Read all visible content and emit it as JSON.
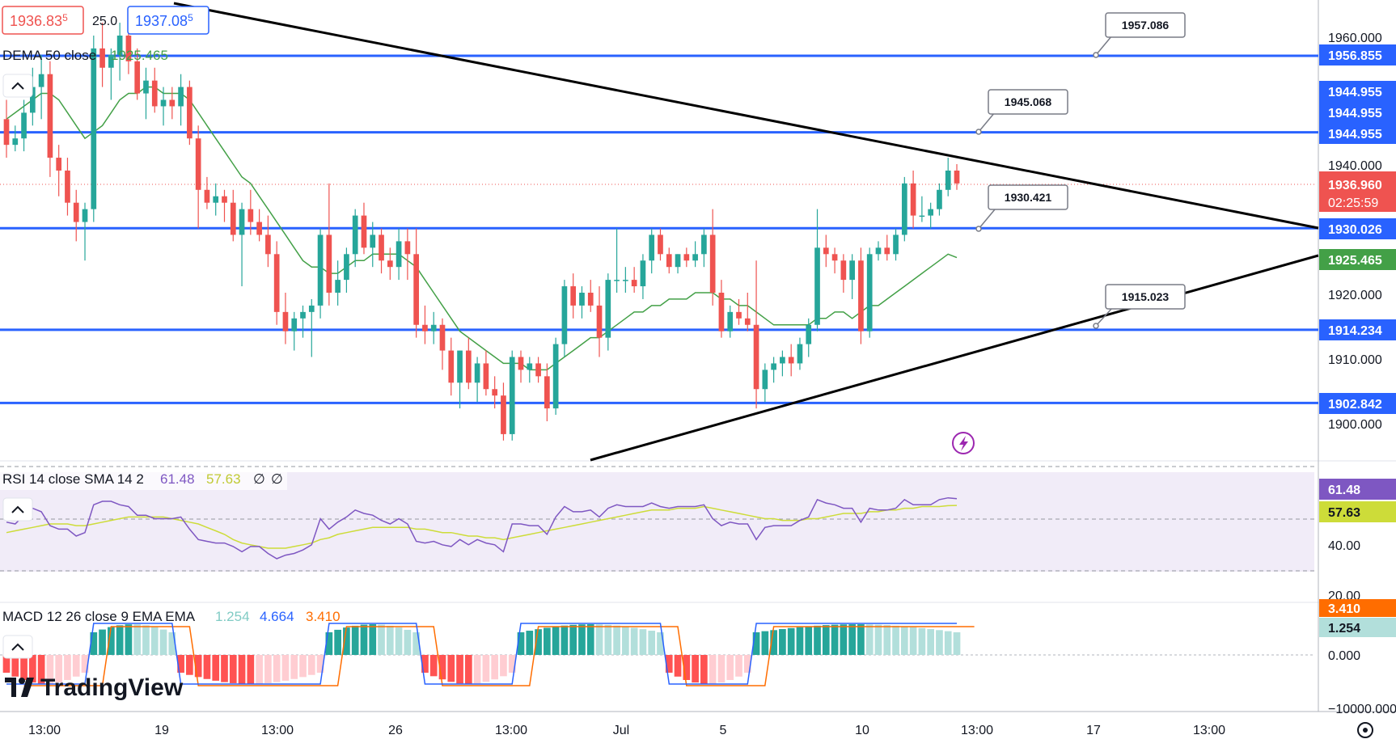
{
  "header": {
    "bid_price": "1936.83",
    "bid_frac": "5",
    "spread": "25.0",
    "ask_price": "1937.08",
    "ask_frac": "5",
    "dema_label": "DEMA 50 close",
    "dema_value": "1925.465"
  },
  "rsi_legend": {
    "label": "RSI 14 close SMA 14 2",
    "rsi": "61.48",
    "sma": "57.63",
    "n1": "∅",
    "n2": "∅"
  },
  "macd_legend": {
    "label": "MACD 12 26 close 9 EMA EMA",
    "hist": "1.254",
    "macd": "4.664",
    "signal": "3.410"
  },
  "brand": {
    "name": "TradingView"
  },
  "colors": {
    "up": "#26a69a",
    "down": "#ef5350",
    "level": "#2962ff",
    "trend": "#000000",
    "dema": "#43a047",
    "rsi": "#7e57c2",
    "rsi_sma": "#cddc39",
    "macd": "#2962ff",
    "signal": "#ff6d00",
    "hist_up_strong": "#26a69a",
    "hist_up_weak": "#b2dfdb",
    "hist_down_strong": "#ff5252",
    "hist_down_weak": "#ffcdd2",
    "price_tag": "#ef5350"
  },
  "price_axis": {
    "ticks": [
      "1960.000",
      "1940.000",
      "1920.000",
      "1910.000",
      "1900.000"
    ],
    "last_price": "1936.960",
    "countdown": "02:25:59",
    "dema_tag": "1925.465"
  },
  "levels": [
    {
      "label": "1956.855",
      "value": 1956.855
    },
    {
      "label": "1944.955",
      "value": 1944.955
    },
    {
      "label": "1944.955",
      "value": 1944.955
    },
    {
      "label": "1944.955",
      "value": 1944.955
    },
    {
      "label": "1930.026",
      "value": 1930.026
    },
    {
      "label": "1914.234",
      "value": 1914.234
    },
    {
      "label": "1902.842",
      "value": 1902.842
    }
  ],
  "callouts": [
    "1957.086",
    "1945.068",
    "1930.421",
    "1915.023"
  ],
  "rsi_axis": {
    "ticks": [
      "40.00",
      "20.00"
    ],
    "rsi_tag": "61.48",
    "sma_tag": "57.63"
  },
  "macd_axis": {
    "ticks": [
      "0.000",
      "−10000.000"
    ],
    "signal_tag": "3.410",
    "hist_tag": "1.254"
  },
  "time_axis": [
    "13:00",
    "19",
    "13:00",
    "26",
    "13:00",
    "Jul",
    "5",
    "10",
    "13:00",
    "17",
    "13:00"
  ],
  "chart_data": {
    "type": "candlestick",
    "instrument_price_range": [
      1898,
      1962
    ],
    "candles": [
      {
        "o": 1947,
        "h": 1950,
        "l": 1941,
        "c": 1943
      },
      {
        "o": 1943,
        "h": 1946,
        "l": 1942,
        "c": 1944
      },
      {
        "o": 1944,
        "h": 1950,
        "l": 1942,
        "c": 1948
      },
      {
        "o": 1948,
        "h": 1955,
        "l": 1946,
        "c": 1952
      },
      {
        "o": 1952,
        "h": 1957,
        "l": 1947,
        "c": 1954
      },
      {
        "o": 1954,
        "h": 1956,
        "l": 1938,
        "c": 1941
      },
      {
        "o": 1941,
        "h": 1943,
        "l": 1935,
        "c": 1939
      },
      {
        "o": 1939,
        "h": 1941,
        "l": 1932,
        "c": 1934
      },
      {
        "o": 1934,
        "h": 1936,
        "l": 1928,
        "c": 1931
      },
      {
        "o": 1931,
        "h": 1934,
        "l": 1925,
        "c": 1933
      },
      {
        "o": 1933,
        "h": 1960,
        "l": 1931,
        "c": 1958
      },
      {
        "o": 1958,
        "h": 1962,
        "l": 1952,
        "c": 1955
      },
      {
        "o": 1955,
        "h": 1958,
        "l": 1950,
        "c": 1957
      },
      {
        "o": 1957,
        "h": 1962,
        "l": 1953,
        "c": 1960
      },
      {
        "o": 1960,
        "h": 1962,
        "l": 1954,
        "c": 1956
      },
      {
        "o": 1956,
        "h": 1958,
        "l": 1950,
        "c": 1951
      },
      {
        "o": 1951,
        "h": 1955,
        "l": 1947,
        "c": 1953
      },
      {
        "o": 1953,
        "h": 1955,
        "l": 1948,
        "c": 1949
      },
      {
        "o": 1949,
        "h": 1952,
        "l": 1946,
        "c": 1950
      },
      {
        "o": 1950,
        "h": 1952,
        "l": 1947,
        "c": 1949
      },
      {
        "o": 1949,
        "h": 1954,
        "l": 1946,
        "c": 1952
      },
      {
        "o": 1952,
        "h": 1953,
        "l": 1943,
        "c": 1944
      },
      {
        "o": 1944,
        "h": 1946,
        "l": 1930,
        "c": 1936
      },
      {
        "o": 1936,
        "h": 1938,
        "l": 1933,
        "c": 1934
      },
      {
        "o": 1934,
        "h": 1937,
        "l": 1932,
        "c": 1935
      },
      {
        "o": 1935,
        "h": 1936,
        "l": 1931,
        "c": 1934
      },
      {
        "o": 1934,
        "h": 1936,
        "l": 1928,
        "c": 1929
      },
      {
        "o": 1929,
        "h": 1934,
        "l": 1921,
        "c": 1933
      },
      {
        "o": 1933,
        "h": 1936,
        "l": 1929,
        "c": 1931
      },
      {
        "o": 1931,
        "h": 1933,
        "l": 1928,
        "c": 1929
      },
      {
        "o": 1929,
        "h": 1932,
        "l": 1924,
        "c": 1926
      },
      {
        "o": 1926,
        "h": 1928,
        "l": 1915,
        "c": 1917
      },
      {
        "o": 1917,
        "h": 1920,
        "l": 1912,
        "c": 1914
      },
      {
        "o": 1914,
        "h": 1917,
        "l": 1911,
        "c": 1916
      },
      {
        "o": 1916,
        "h": 1918,
        "l": 1913,
        "c": 1917
      },
      {
        "o": 1917,
        "h": 1919,
        "l": 1910,
        "c": 1918
      },
      {
        "o": 1918,
        "h": 1930,
        "l": 1916,
        "c": 1929
      },
      {
        "o": 1929,
        "h": 1937,
        "l": 1918,
        "c": 1920
      },
      {
        "o": 1920,
        "h": 1925,
        "l": 1918,
        "c": 1922
      },
      {
        "o": 1922,
        "h": 1927,
        "l": 1920,
        "c": 1926
      },
      {
        "o": 1926,
        "h": 1933,
        "l": 1924,
        "c": 1932
      },
      {
        "o": 1932,
        "h": 1934,
        "l": 1926,
        "c": 1927
      },
      {
        "o": 1927,
        "h": 1931,
        "l": 1924,
        "c": 1929
      },
      {
        "o": 1929,
        "h": 1930,
        "l": 1923,
        "c": 1925
      },
      {
        "o": 1925,
        "h": 1927,
        "l": 1922,
        "c": 1924
      },
      {
        "o": 1924,
        "h": 1930,
        "l": 1922,
        "c": 1928
      },
      {
        "o": 1928,
        "h": 1930,
        "l": 1922,
        "c": 1926
      },
      {
        "o": 1926,
        "h": 1930,
        "l": 1913,
        "c": 1915
      },
      {
        "o": 1915,
        "h": 1918,
        "l": 1912,
        "c": 1914
      },
      {
        "o": 1914,
        "h": 1917,
        "l": 1912,
        "c": 1915
      },
      {
        "o": 1915,
        "h": 1916,
        "l": 1908,
        "c": 1911
      },
      {
        "o": 1911,
        "h": 1913,
        "l": 1904,
        "c": 1906
      },
      {
        "o": 1906,
        "h": 1911,
        "l": 1902,
        "c": 1911
      },
      {
        "o": 1911,
        "h": 1913,
        "l": 1905,
        "c": 1906
      },
      {
        "o": 1906,
        "h": 1910,
        "l": 1903,
        "c": 1909
      },
      {
        "o": 1909,
        "h": 1911,
        "l": 1904,
        "c": 1905
      },
      {
        "o": 1905,
        "h": 1907,
        "l": 1902,
        "c": 1904
      },
      {
        "o": 1904,
        "h": 1906,
        "l": 1897,
        "c": 1898
      },
      {
        "o": 1898,
        "h": 1911,
        "l": 1897,
        "c": 1910
      },
      {
        "o": 1910,
        "h": 1911,
        "l": 1906,
        "c": 1908
      },
      {
        "o": 1908,
        "h": 1910,
        "l": 1906,
        "c": 1909
      },
      {
        "o": 1909,
        "h": 1910,
        "l": 1906,
        "c": 1907
      },
      {
        "o": 1907,
        "h": 1909,
        "l": 1900,
        "c": 1902
      },
      {
        "o": 1902,
        "h": 1913,
        "l": 1901,
        "c": 1912
      },
      {
        "o": 1912,
        "h": 1922,
        "l": 1910,
        "c": 1921
      },
      {
        "o": 1921,
        "h": 1923,
        "l": 1916,
        "c": 1918
      },
      {
        "o": 1918,
        "h": 1921,
        "l": 1916,
        "c": 1920
      },
      {
        "o": 1920,
        "h": 1922,
        "l": 1917,
        "c": 1918
      },
      {
        "o": 1918,
        "h": 1921,
        "l": 1910,
        "c": 1913
      },
      {
        "o": 1913,
        "h": 1923,
        "l": 1911,
        "c": 1922
      },
      {
        "o": 1922,
        "h": 1930,
        "l": 1920,
        "c": 1922
      },
      {
        "o": 1922,
        "h": 1924,
        "l": 1920,
        "c": 1922
      },
      {
        "o": 1922,
        "h": 1924,
        "l": 1920,
        "c": 1921
      },
      {
        "o": 1921,
        "h": 1926,
        "l": 1919,
        "c": 1925
      },
      {
        "o": 1925,
        "h": 1930,
        "l": 1923,
        "c": 1929
      },
      {
        "o": 1929,
        "h": 1930,
        "l": 1925,
        "c": 1926
      },
      {
        "o": 1926,
        "h": 1927,
        "l": 1923,
        "c": 1924
      },
      {
        "o": 1924,
        "h": 1926,
        "l": 1923,
        "c": 1926
      },
      {
        "o": 1926,
        "h": 1927,
        "l": 1924,
        "c": 1925
      },
      {
        "o": 1925,
        "h": 1928,
        "l": 1924,
        "c": 1926
      },
      {
        "o": 1926,
        "h": 1930,
        "l": 1924,
        "c": 1929
      },
      {
        "o": 1929,
        "h": 1933,
        "l": 1918,
        "c": 1920
      },
      {
        "o": 1920,
        "h": 1922,
        "l": 1913,
        "c": 1914
      },
      {
        "o": 1914,
        "h": 1918,
        "l": 1913,
        "c": 1917
      },
      {
        "o": 1917,
        "h": 1919,
        "l": 1915,
        "c": 1916
      },
      {
        "o": 1916,
        "h": 1920,
        "l": 1914,
        "c": 1915
      },
      {
        "o": 1915,
        "h": 1925,
        "l": 1902,
        "c": 1905
      },
      {
        "o": 1905,
        "h": 1909,
        "l": 1903,
        "c": 1908
      },
      {
        "o": 1908,
        "h": 1910,
        "l": 1906,
        "c": 1909
      },
      {
        "o": 1909,
        "h": 1911,
        "l": 1907,
        "c": 1910
      },
      {
        "o": 1910,
        "h": 1912,
        "l": 1907,
        "c": 1909
      },
      {
        "o": 1909,
        "h": 1913,
        "l": 1908,
        "c": 1912
      },
      {
        "o": 1912,
        "h": 1916,
        "l": 1910,
        "c": 1915
      },
      {
        "o": 1915,
        "h": 1933,
        "l": 1914,
        "c": 1927
      },
      {
        "o": 1927,
        "h": 1929,
        "l": 1924,
        "c": 1926
      },
      {
        "o": 1926,
        "h": 1927,
        "l": 1923,
        "c": 1925
      },
      {
        "o": 1925,
        "h": 1926,
        "l": 1920,
        "c": 1922
      },
      {
        "o": 1922,
        "h": 1926,
        "l": 1919,
        "c": 1925
      },
      {
        "o": 1925,
        "h": 1927,
        "l": 1912,
        "c": 1914
      },
      {
        "o": 1914,
        "h": 1927,
        "l": 1913,
        "c": 1926
      },
      {
        "o": 1926,
        "h": 1928,
        "l": 1925,
        "c": 1927
      },
      {
        "o": 1927,
        "h": 1929,
        "l": 1925,
        "c": 1926
      },
      {
        "o": 1926,
        "h": 1930,
        "l": 1925,
        "c": 1929
      },
      {
        "o": 1929,
        "h": 1938,
        "l": 1928,
        "c": 1937
      },
      {
        "o": 1937,
        "h": 1939,
        "l": 1930,
        "c": 1932
      },
      {
        "o": 1932,
        "h": 1935,
        "l": 1931,
        "c": 1932
      },
      {
        "o": 1932,
        "h": 1934,
        "l": 1930,
        "c": 1933
      },
      {
        "o": 1933,
        "h": 1937,
        "l": 1932,
        "c": 1936
      },
      {
        "o": 1936,
        "h": 1941,
        "l": 1935,
        "c": 1939
      },
      {
        "o": 1939,
        "h": 1940,
        "l": 1936,
        "c": 1937
      }
    ],
    "dema_50": [
      1947,
      1948,
      1949,
      1950,
      1951,
      1951,
      1950,
      1948,
      1946,
      1944,
      1945,
      1946,
      1948,
      1950,
      1951,
      1951,
      1952,
      1952,
      1951,
      1951,
      1951,
      1950,
      1948,
      1946,
      1944,
      1942,
      1940,
      1938,
      1937,
      1935,
      1933,
      1931,
      1929,
      1927,
      1925,
      1924,
      1924,
      1923,
      1923,
      1924,
      1925,
      1925,
      1926,
      1926,
      1926,
      1926,
      1925,
      1924,
      1922,
      1920,
      1918,
      1916,
      1914,
      1913,
      1912,
      1911,
      1910,
      1909,
      1909,
      1909,
      1908,
      1908,
      1908,
      1909,
      1910,
      1911,
      1912,
      1913,
      1913,
      1914,
      1915,
      1916,
      1917,
      1917,
      1918,
      1918,
      1919,
      1919,
      1919,
      1920,
      1920,
      1920,
      1919,
      1919,
      1918,
      1918,
      1917,
      1916,
      1915,
      1915,
      1915,
      1915,
      1915,
      1916,
      1916,
      1917,
      1917,
      1916,
      1917,
      1918,
      1918,
      1919,
      1920,
      1921,
      1922,
      1923,
      1924,
      1925,
      1926,
      1925.465
    ],
    "rsi_14": [
      48,
      47,
      52,
      56,
      54,
      46,
      44,
      44,
      40,
      42,
      58,
      60,
      60,
      58,
      57,
      52,
      52,
      50,
      50,
      50,
      51,
      44,
      38,
      37,
      36,
      36,
      34,
      31,
      34,
      34,
      30,
      27,
      29,
      30,
      32,
      35,
      50,
      44,
      48,
      51,
      55,
      53,
      52,
      49,
      47,
      50,
      47,
      37,
      36,
      37,
      35,
      34,
      38,
      35,
      38,
      36,
      35,
      31,
      47,
      47,
      46,
      46,
      41,
      51,
      57,
      54,
      54,
      55,
      51,
      56,
      58,
      57,
      57,
      57,
      59,
      57,
      56,
      57,
      57,
      57,
      58,
      50,
      46,
      48,
      47,
      47,
      38,
      45,
      46,
      46,
      46,
      49,
      51,
      61,
      59,
      58,
      56,
      56,
      48,
      56,
      55,
      55,
      56,
      61,
      58,
      58,
      58,
      61,
      62,
      61.48
    ],
    "rsi_sma": [
      42,
      43,
      44,
      45,
      46,
      47,
      47,
      47,
      46,
      46,
      47,
      48,
      49,
      50,
      51,
      51,
      51,
      51,
      51,
      50,
      49,
      48,
      47,
      45,
      43,
      41,
      38,
      36,
      35,
      34,
      33,
      33,
      33,
      34,
      35,
      36,
      38,
      39,
      41,
      42,
      43,
      44,
      45,
      45,
      45,
      45,
      45,
      44,
      44,
      43,
      42,
      42,
      41,
      40,
      40,
      39,
      39,
      38,
      39,
      40,
      41,
      42,
      43,
      44,
      45,
      46,
      47,
      48,
      49,
      50,
      51,
      52,
      53,
      54,
      55,
      55,
      55,
      56,
      56,
      56,
      57,
      56,
      55,
      54,
      53,
      52,
      51,
      50,
      50,
      49,
      49,
      49,
      50,
      50,
      51,
      52,
      53,
      53,
      53,
      54,
      54,
      55,
      55,
      56,
      56,
      57,
      57,
      57,
      57.5,
      57.63
    ],
    "macd_line_level": "mostly negative, recovering to positive near end",
    "macd_value": 4.664,
    "signal_value": 3.41,
    "histogram_value": 1.254,
    "x_tick_labels": [
      "13:00",
      "19",
      "13:00",
      "26",
      "13:00",
      "Jul",
      "5",
      "10",
      "13:00",
      "17",
      "13:00"
    ],
    "horizontal_levels": [
      1956.855,
      1944.955,
      1930.026,
      1914.234,
      1902.842
    ],
    "annotations": [
      "1957.086",
      "1945.068",
      "1930.421",
      "1915.023"
    ]
  }
}
